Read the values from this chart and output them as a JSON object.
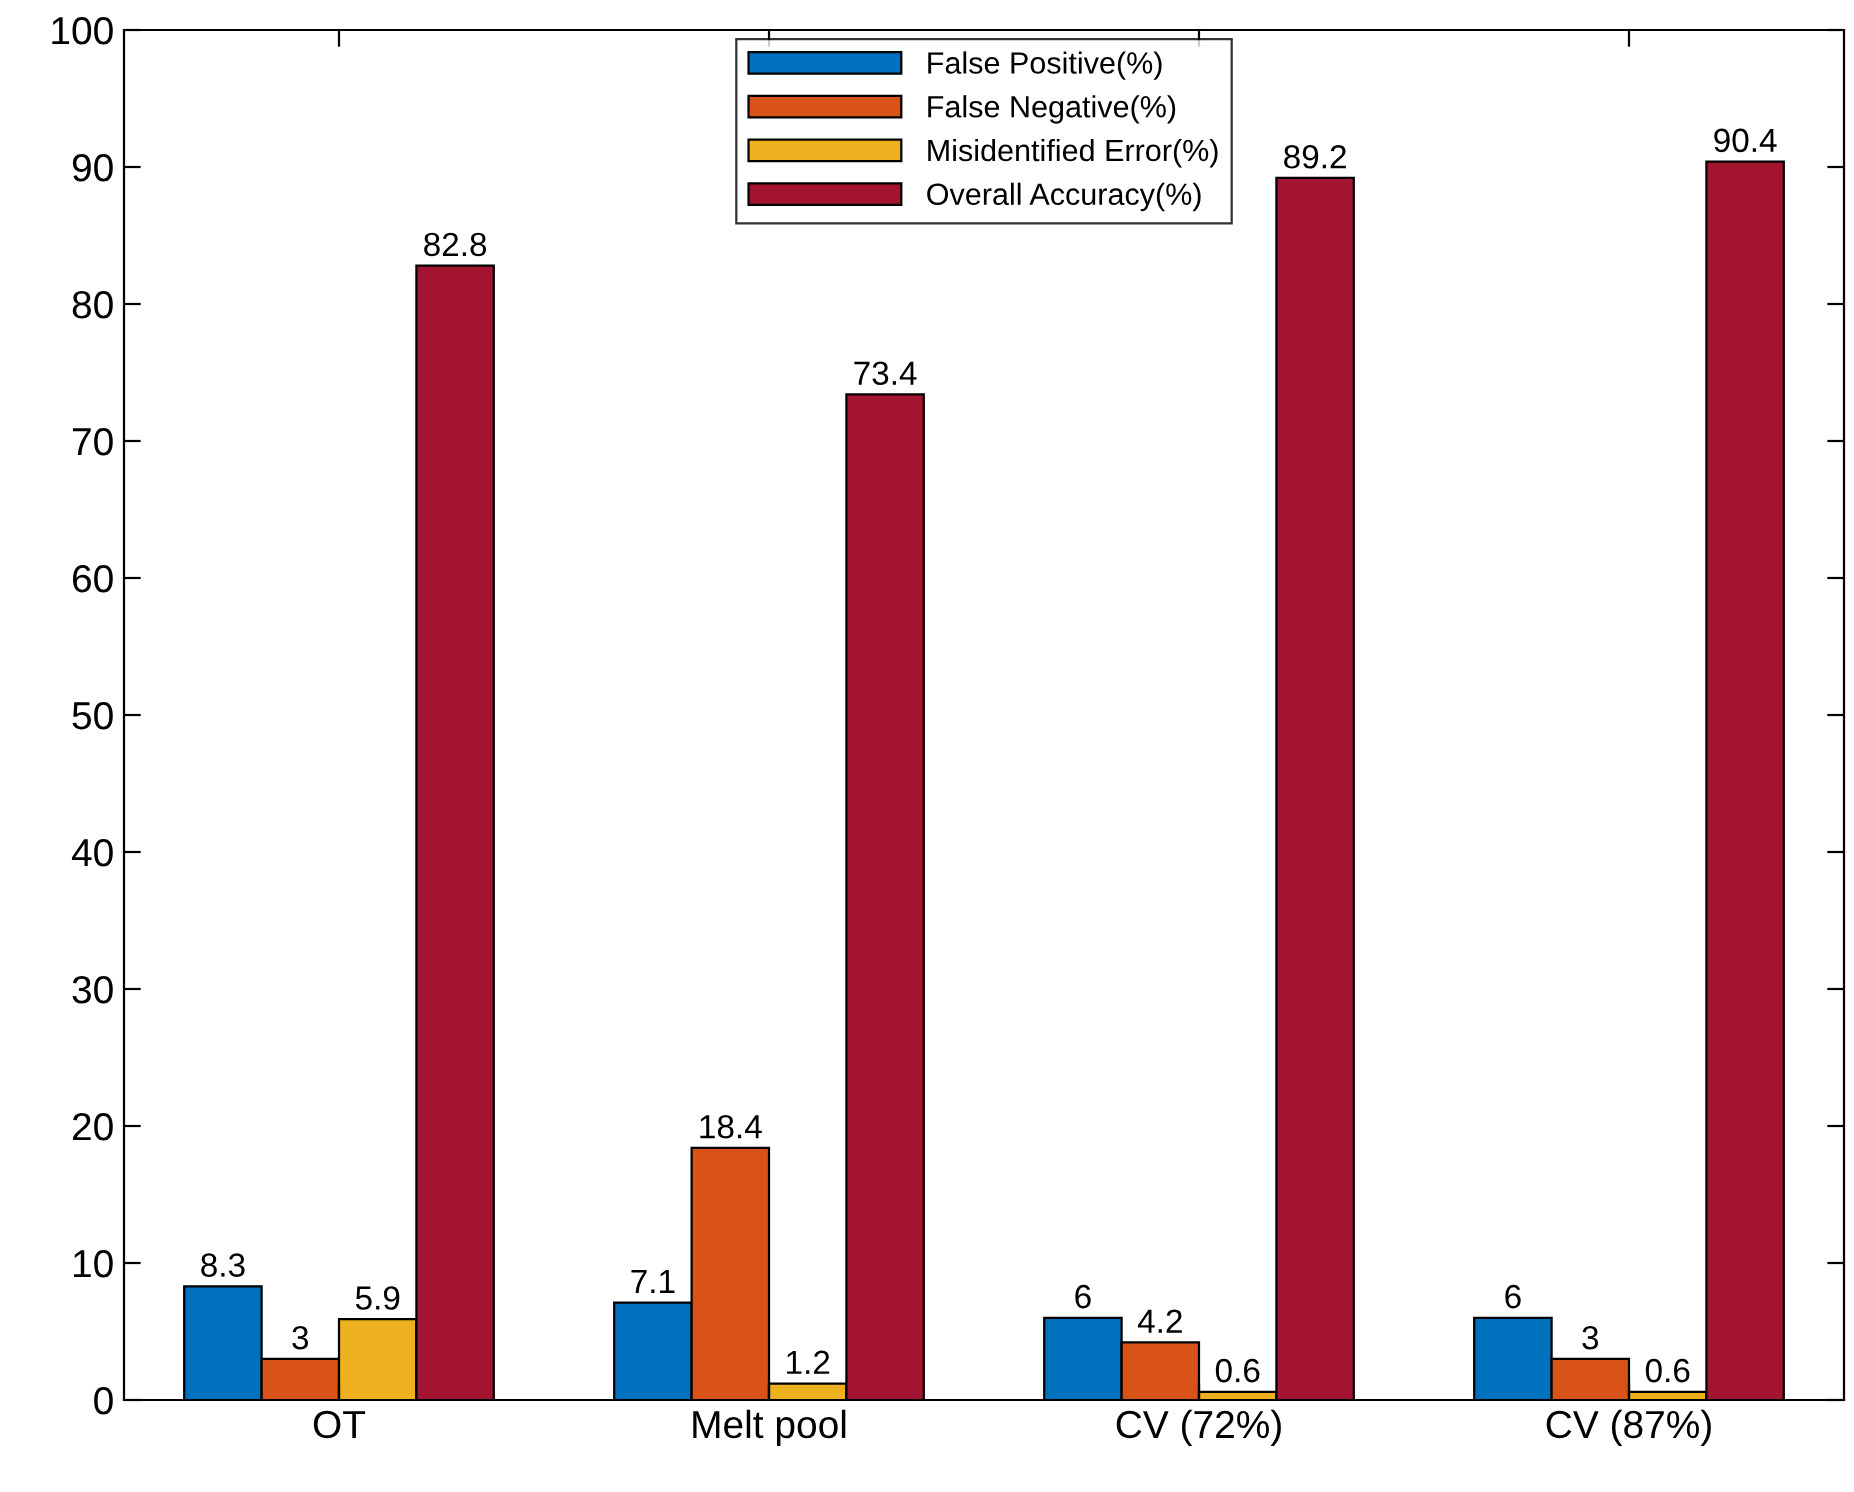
{
  "chart_data": {
    "type": "bar",
    "categories": [
      "OT",
      "Melt pool",
      "CV (72%)",
      "CV (87%)"
    ],
    "series": [
      {
        "name": "False Positive(%)",
        "color": "#0072bd",
        "values": [
          8.3,
          7.1,
          6,
          6
        ]
      },
      {
        "name": "False Negative(%)",
        "color": "#d95319",
        "values": [
          3,
          18.4,
          4.2,
          3
        ]
      },
      {
        "name": "Misidentified Error(%)",
        "color": "#edb120",
        "values": [
          5.9,
          1.2,
          0.6,
          0.6
        ]
      },
      {
        "name": "Overall Accuracy(%)",
        "color": "#a2142f",
        "values": [
          82.8,
          73.4,
          89.2,
          90.4
        ]
      }
    ],
    "ylim": [
      0,
      100
    ],
    "yticks": [
      0,
      10,
      20,
      30,
      40,
      50,
      60,
      70,
      80,
      90,
      100
    ],
    "data_labels": true,
    "legend": "top",
    "grid": false
  }
}
